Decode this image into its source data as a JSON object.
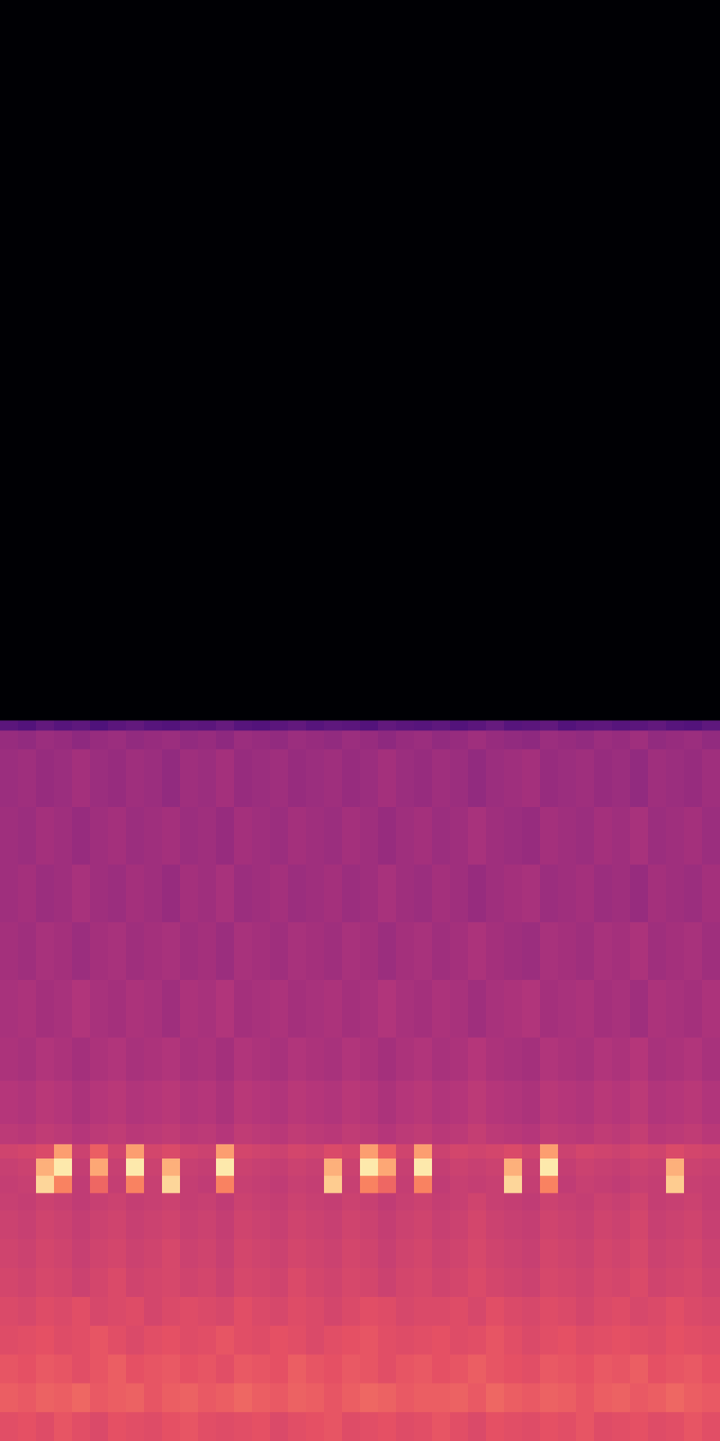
{
  "chart_data": {
    "type": "heatmap",
    "x": [
      0,
      1,
      2,
      3,
      4,
      5,
      6,
      7,
      8,
      9,
      10,
      11,
      12,
      13,
      14,
      15,
      16,
      17,
      18,
      19,
      20,
      21,
      22,
      23,
      24,
      25,
      26,
      27,
      28,
      29,
      30,
      31,
      32,
      33,
      34,
      35,
      36,
      37,
      38,
      39,
      40
    ],
    "y": [
      0,
      2,
      4,
      6,
      8,
      10,
      12,
      14,
      16,
      17.2,
      18.4,
      19.6,
      20.6,
      22,
      25,
      28,
      32,
      36,
      40,
      44,
      48,
      49.3,
      50,
      100
    ],
    "z": [
      [
        62,
        63,
        61,
        64,
        62,
        60,
        63,
        62,
        61,
        63,
        64,
        62,
        61,
        62,
        63,
        60,
        62,
        63,
        64,
        61,
        62,
        63,
        61,
        62,
        64,
        62,
        60,
        63,
        62,
        61,
        63,
        62,
        64,
        61,
        62,
        63,
        61,
        62,
        64,
        62
      ],
      [
        66,
        65,
        67,
        66,
        68,
        65,
        66,
        67,
        64,
        66,
        67,
        65,
        66,
        68,
        66,
        65,
        67,
        66,
        64,
        66,
        68,
        67,
        65,
        66,
        66,
        67,
        65,
        68,
        66,
        65,
        67,
        66,
        64,
        66,
        67,
        65,
        66,
        68,
        66,
        65
      ],
      [
        64,
        63,
        65,
        64,
        62,
        64,
        66,
        63,
        64,
        65,
        63,
        64,
        62,
        65,
        64,
        63,
        66,
        64,
        63,
        65,
        64,
        62,
        64,
        65,
        63,
        64,
        66,
        64,
        63,
        62,
        65,
        64,
        63,
        65,
        64,
        66,
        63,
        64,
        65,
        63
      ],
      [
        61,
        62,
        63,
        61,
        62,
        64,
        62,
        60,
        62,
        63,
        61,
        62,
        64,
        62,
        61,
        63,
        62,
        60,
        62,
        63,
        64,
        62,
        61,
        62,
        63,
        61,
        62,
        64,
        62,
        60,
        62,
        63,
        61,
        62,
        63,
        62,
        61,
        63,
        62,
        61
      ],
      [
        60,
        59,
        61,
        60,
        62,
        59,
        60,
        61,
        58,
        60,
        61,
        60,
        59,
        62,
        60,
        59,
        61,
        60,
        58,
        60,
        62,
        61,
        59,
        60,
        60,
        61,
        59,
        62,
        60,
        59,
        61,
        60,
        58,
        60,
        61,
        59,
        60,
        62,
        60,
        59
      ],
      [
        58,
        57,
        59,
        58,
        56,
        58,
        60,
        57,
        58,
        59,
        57,
        58,
        56,
        59,
        58,
        57,
        60,
        58,
        57,
        59,
        58,
        56,
        58,
        59,
        57,
        58,
        60,
        58,
        57,
        56,
        59,
        58,
        57,
        59,
        58,
        60,
        57,
        58,
        59,
        57
      ],
      [
        57,
        56,
        58,
        57,
        55,
        57,
        58,
        56,
        57,
        59,
        56,
        57,
        55,
        58,
        57,
        56,
        58,
        57,
        56,
        58,
        57,
        55,
        57,
        58,
        56,
        57,
        59,
        57,
        56,
        55,
        58,
        57,
        56,
        58,
        57,
        59,
        56,
        57,
        58,
        56
      ],
      [
        56,
        55,
        57,
        56,
        54,
        56,
        57,
        55,
        56,
        57,
        55,
        56,
        54,
        57,
        56,
        55,
        57,
        56,
        55,
        57,
        56,
        54,
        56,
        57,
        55,
        56,
        58,
        56,
        55,
        54,
        57,
        56,
        55,
        57,
        56,
        58,
        55,
        56,
        57,
        55
      ],
      [
        55,
        54,
        56,
        55,
        53,
        55,
        56,
        54,
        55,
        56,
        54,
        55,
        53,
        56,
        55,
        54,
        56,
        55,
        54,
        56,
        55,
        53,
        55,
        56,
        54,
        55,
        57,
        55,
        54,
        53,
        56,
        55,
        54,
        56,
        55,
        57,
        54,
        55,
        56,
        54
      ],
      [
        54,
        55,
        92,
        74,
        53,
        68,
        54,
        74,
        55,
        92,
        54,
        53,
        74,
        55,
        54,
        53,
        55,
        54,
        90,
        55,
        74,
        68,
        54,
        74,
        53,
        55,
        54,
        55,
        92,
        54,
        74,
        53,
        55,
        54,
        53,
        55,
        54,
        90,
        55,
        54
      ],
      [
        55,
        56,
        84,
        96,
        54,
        82,
        55,
        96,
        56,
        84,
        55,
        54,
        96,
        56,
        55,
        54,
        56,
        55,
        84,
        56,
        96,
        82,
        55,
        96,
        54,
        56,
        55,
        56,
        84,
        55,
        96,
        54,
        56,
        55,
        54,
        56,
        55,
        84,
        56,
        55
      ],
      [
        57,
        58,
        60,
        80,
        56,
        66,
        57,
        80,
        58,
        60,
        57,
        56,
        80,
        58,
        57,
        56,
        58,
        57,
        60,
        58,
        80,
        66,
        57,
        80,
        56,
        58,
        57,
        58,
        60,
        57,
        80,
        56,
        58,
        57,
        56,
        58,
        57,
        60,
        58,
        57
      ],
      [
        52,
        51,
        53,
        52,
        50,
        52,
        53,
        51,
        52,
        53,
        51,
        52,
        50,
        53,
        52,
        51,
        53,
        52,
        51,
        53,
        52,
        50,
        52,
        53,
        51,
        52,
        54,
        52,
        51,
        50,
        53,
        52,
        51,
        53,
        52,
        54,
        51,
        52,
        53,
        51
      ],
      [
        50,
        49,
        51,
        50,
        48,
        50,
        51,
        49,
        50,
        51,
        49,
        50,
        48,
        51,
        50,
        49,
        51,
        50,
        49,
        51,
        50,
        48,
        50,
        51,
        49,
        50,
        52,
        50,
        49,
        48,
        51,
        50,
        49,
        51,
        50,
        52,
        49,
        50,
        51,
        49
      ],
      [
        48,
        47,
        49,
        48,
        46,
        48,
        49,
        47,
        48,
        49,
        47,
        48,
        46,
        49,
        48,
        47,
        49,
        48,
        47,
        49,
        48,
        46,
        48,
        49,
        47,
        48,
        50,
        48,
        47,
        46,
        49,
        48,
        47,
        49,
        48,
        50,
        47,
        48,
        49,
        47
      ],
      [
        47,
        48,
        46,
        47,
        49,
        47,
        46,
        48,
        47,
        45,
        48,
        47,
        49,
        46,
        47,
        48,
        46,
        47,
        48,
        46,
        47,
        49,
        47,
        46,
        48,
        47,
        45,
        47,
        48,
        49,
        46,
        47,
        48,
        46,
        47,
        45,
        48,
        47,
        46,
        48
      ],
      [
        46,
        45,
        47,
        46,
        44,
        46,
        47,
        45,
        46,
        47,
        45,
        46,
        44,
        47,
        46,
        45,
        47,
        46,
        45,
        47,
        46,
        44,
        46,
        47,
        45,
        46,
        48,
        46,
        45,
        44,
        47,
        46,
        45,
        47,
        46,
        48,
        45,
        46,
        47,
        45
      ],
      [
        45,
        46,
        44,
        45,
        47,
        45,
        44,
        46,
        45,
        43,
        46,
        45,
        47,
        44,
        45,
        46,
        44,
        45,
        46,
        44,
        45,
        47,
        45,
        44,
        46,
        45,
        43,
        45,
        46,
        47,
        44,
        45,
        46,
        44,
        45,
        43,
        46,
        45,
        44,
        46
      ],
      [
        45,
        44,
        46,
        45,
        43,
        45,
        46,
        44,
        45,
        46,
        44,
        45,
        43,
        46,
        45,
        44,
        46,
        45,
        44,
        46,
        45,
        43,
        45,
        46,
        44,
        45,
        47,
        45,
        44,
        43,
        46,
        45,
        44,
        46,
        45,
        47,
        44,
        45,
        46,
        44
      ],
      [
        44,
        45,
        43,
        44,
        46,
        44,
        43,
        45,
        44,
        42,
        45,
        44,
        46,
        43,
        44,
        45,
        43,
        44,
        45,
        43,
        44,
        46,
        44,
        43,
        45,
        44,
        42,
        44,
        45,
        46,
        43,
        44,
        45,
        43,
        44,
        42,
        45,
        44,
        43,
        45
      ],
      [
        43,
        42,
        44,
        43,
        41,
        43,
        44,
        42,
        43,
        44,
        42,
        43,
        41,
        44,
        43,
        42,
        44,
        43,
        42,
        44,
        43,
        41,
        43,
        44,
        42,
        43,
        45,
        43,
        42,
        41,
        44,
        43,
        42,
        44,
        43,
        45,
        42,
        43,
        44,
        42
      ],
      [
        28,
        26,
        30,
        27,
        29,
        25,
        28,
        30,
        27,
        26,
        29,
        28,
        31,
        27,
        26,
        28,
        30,
        27,
        29,
        28,
        26,
        30,
        28,
        27,
        29,
        26,
        28,
        31,
        27,
        28,
        30,
        26,
        28,
        29,
        27,
        28,
        30,
        27,
        26,
        29
      ],
      [
        0,
        0,
        0,
        0,
        0,
        0,
        0,
        0,
        0,
        0,
        0,
        0,
        0,
        0,
        0,
        0,
        0,
        0,
        0,
        0,
        0,
        0,
        0,
        0,
        0,
        0,
        0,
        0,
        0,
        0,
        0,
        0,
        0,
        0,
        0,
        0,
        0,
        0,
        0,
        0
      ]
    ],
    "zlim": [
      0,
      100
    ],
    "xlim": [
      0,
      40
    ],
    "ylim": [
      0,
      100
    ],
    "tick_labels": false,
    "grid": false
  }
}
